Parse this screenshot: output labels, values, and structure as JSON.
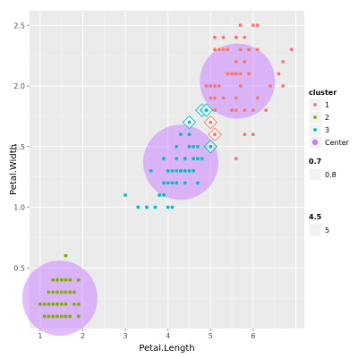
{
  "chart_data": {
    "type": "scatter",
    "xlabel": "Petal.Length",
    "ylabel": "Petal.Width",
    "xlim": [
      0.75,
      7.2
    ],
    "ylim": [
      0.0,
      2.62
    ],
    "x_ticks": [
      1,
      2,
      3,
      4,
      5,
      6
    ],
    "y_ticks": [
      0.5,
      1.0,
      1.5,
      2.0,
      2.5
    ],
    "x_tick_labels": [
      "1",
      "2",
      "3",
      "4",
      "5",
      "6"
    ],
    "y_tick_labels": [
      "0.5",
      "1.0",
      "1.5",
      "2.0",
      "2.5"
    ],
    "grid": true,
    "legend_position": "right",
    "legends": [
      {
        "title": "cluster",
        "entries": [
          "1",
          "2",
          "3",
          "Center"
        ]
      },
      {
        "title": "0.7",
        "entries": [
          "0.8"
        ]
      },
      {
        "title": "4.5",
        "entries": [
          "5"
        ]
      }
    ],
    "colors": {
      "1": "#F8766D",
      "2": "#7CAE00",
      "3": "#00BFC4",
      "Center": "#C77CFF"
    },
    "centers": [
      {
        "cluster": "1",
        "x": 5.63,
        "y": 2.04
      },
      {
        "cluster": "2",
        "x": 1.46,
        "y": 0.25
      },
      {
        "cluster": "3",
        "x": 4.3,
        "y": 1.37
      }
    ],
    "misclassified": [
      {
        "x": 4.5,
        "y": 1.7,
        "cluster": "3"
      },
      {
        "x": 4.8,
        "y": 1.8,
        "cluster": "3"
      },
      {
        "x": 4.9,
        "y": 1.8,
        "cluster": "3"
      },
      {
        "x": 5.0,
        "y": 1.7,
        "cluster": "1"
      },
      {
        "x": 5.1,
        "y": 1.6,
        "cluster": "1"
      },
      {
        "x": 5.0,
        "y": 1.5,
        "cluster": "3"
      }
    ],
    "series": [
      {
        "name": "1",
        "points": [
          [
            6.0,
            2.5
          ],
          [
            5.1,
            1.9
          ],
          [
            5.9,
            2.1
          ],
          [
            5.6,
            1.8
          ],
          [
            5.8,
            2.2
          ],
          [
            6.6,
            2.1
          ],
          [
            6.3,
            1.8
          ],
          [
            5.8,
            1.8
          ],
          [
            6.1,
            2.5
          ],
          [
            5.1,
            2.0
          ],
          [
            5.3,
            1.9
          ],
          [
            5.5,
            2.1
          ],
          [
            5.0,
            2.0
          ],
          [
            5.1,
            2.4
          ],
          [
            5.3,
            2.3
          ],
          [
            5.5,
            1.8
          ],
          [
            6.7,
            2.2
          ],
          [
            6.9,
            2.3
          ],
          [
            5.7,
            2.3
          ],
          [
            4.9,
            2.0
          ],
          [
            6.7,
            2.0
          ],
          [
            5.7,
            2.1
          ],
          [
            6.0,
            1.8
          ],
          [
            5.6,
            2.1
          ],
          [
            5.8,
            1.6
          ],
          [
            6.1,
            1.9
          ],
          [
            6.4,
            2.0
          ],
          [
            5.6,
            2.2
          ],
          [
            5.1,
            1.5
          ],
          [
            5.6,
            1.4
          ],
          [
            6.1,
            2.3
          ],
          [
            5.6,
            2.4
          ],
          [
            5.5,
            1.8
          ],
          [
            5.4,
            2.1
          ],
          [
            5.6,
            2.4
          ],
          [
            5.1,
            2.3
          ],
          [
            5.9,
            2.3
          ],
          [
            5.7,
            2.5
          ],
          [
            5.2,
            2.3
          ],
          [
            5.0,
            1.9
          ],
          [
            5.2,
            2.0
          ],
          [
            5.4,
            2.3
          ],
          [
            5.1,
            1.8
          ],
          [
            5.9,
            2.3
          ],
          [
            5.6,
            1.9
          ],
          [
            6.0,
            1.6
          ],
          [
            5.8,
            2.4
          ],
          [
            5.5,
            2.1
          ],
          [
            5.3,
            2.4
          ],
          [
            5.7,
            2.0
          ]
        ]
      },
      {
        "name": "2",
        "points": [
          [
            1.4,
            0.2
          ],
          [
            1.3,
            0.2
          ],
          [
            1.5,
            0.2
          ],
          [
            1.7,
            0.4
          ],
          [
            1.4,
            0.3
          ],
          [
            1.5,
            0.1
          ],
          [
            1.6,
            0.2
          ],
          [
            1.1,
            0.1
          ],
          [
            1.2,
            0.2
          ],
          [
            1.3,
            0.4
          ],
          [
            1.7,
            0.3
          ],
          [
            1.0,
            0.2
          ],
          [
            1.9,
            0.2
          ],
          [
            1.6,
            0.4
          ],
          [
            1.5,
            0.4
          ],
          [
            1.6,
            0.6
          ],
          [
            1.9,
            0.4
          ],
          [
            1.4,
            0.1
          ],
          [
            1.2,
            0.1
          ],
          [
            1.3,
            0.3
          ],
          [
            1.5,
            0.3
          ],
          [
            1.6,
            0.1
          ],
          [
            1.3,
            0.1
          ],
          [
            1.8,
            0.2
          ],
          [
            1.1,
            0.2
          ],
          [
            1.7,
            0.1
          ],
          [
            1.4,
            0.4
          ],
          [
            1.2,
            0.3
          ],
          [
            1.6,
            0.3
          ],
          [
            1.8,
            0.3
          ],
          [
            1.9,
            0.1
          ]
        ]
      },
      {
        "name": "3",
        "points": [
          [
            4.7,
            1.4
          ],
          [
            4.5,
            1.5
          ],
          [
            4.9,
            1.5
          ],
          [
            4.0,
            1.3
          ],
          [
            4.6,
            1.5
          ],
          [
            4.5,
            1.3
          ],
          [
            3.3,
            1.0
          ],
          [
            4.6,
            1.3
          ],
          [
            3.9,
            1.4
          ],
          [
            3.5,
            1.0
          ],
          [
            4.2,
            1.5
          ],
          [
            4.0,
            1.0
          ],
          [
            4.7,
            1.4
          ],
          [
            3.6,
            1.3
          ],
          [
            4.4,
            1.4
          ],
          [
            4.1,
            1.0
          ],
          [
            4.5,
            1.5
          ],
          [
            3.9,
            1.1
          ],
          [
            4.8,
            1.8
          ],
          [
            4.0,
            1.3
          ],
          [
            4.9,
            1.5
          ],
          [
            4.7,
            1.2
          ],
          [
            4.3,
            1.3
          ],
          [
            4.4,
            1.4
          ],
          [
            4.8,
            1.4
          ],
          [
            5.0,
            1.7
          ],
          [
            3.8,
            1.1
          ],
          [
            3.7,
            1.0
          ],
          [
            4.1,
            1.3
          ],
          [
            4.5,
            1.6
          ],
          [
            4.7,
            1.5
          ],
          [
            4.4,
            1.3
          ],
          [
            4.1,
            1.2
          ],
          [
            4.6,
            1.4
          ],
          [
            4.0,
            1.2
          ],
          [
            3.3,
            1.0
          ],
          [
            4.2,
            1.3
          ],
          [
            4.2,
            1.2
          ],
          [
            4.3,
            1.3
          ],
          [
            3.0,
            1.1
          ],
          [
            5.1,
            1.6
          ],
          [
            3.9,
            1.2
          ],
          [
            4.5,
            1.7
          ],
          [
            4.8,
            1.8
          ],
          [
            4.9,
            1.8
          ],
          [
            4.3,
            1.6
          ],
          [
            4.4,
            1.2
          ],
          [
            3.5,
            1.0
          ],
          [
            3.8,
            1.1
          ],
          [
            4.2,
            1.4
          ]
        ]
      }
    ]
  }
}
